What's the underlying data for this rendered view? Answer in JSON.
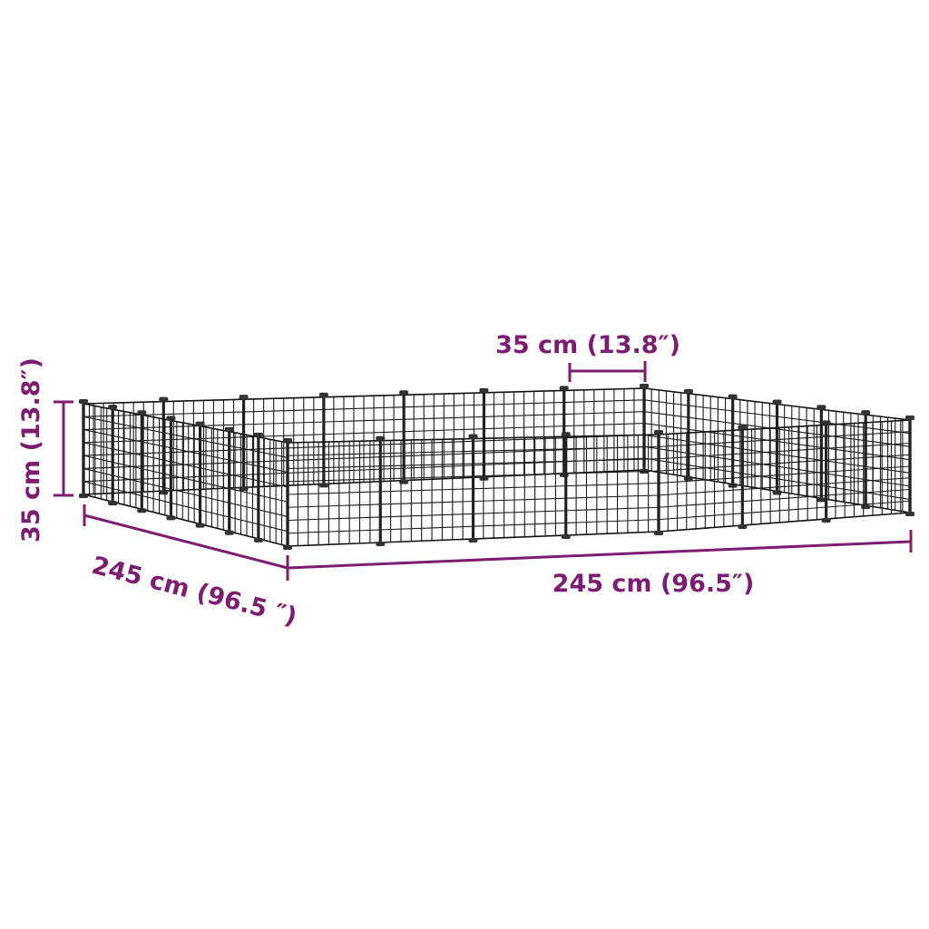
{
  "dimensions": {
    "height_label": "35 cm (13.8″)",
    "panel_width_label": "35 cm (13.8″)",
    "depth_label": "245 cm (96.5 ″)",
    "width_label": "245 cm (96.5″)"
  },
  "colors": {
    "dimension": "#7d1d72",
    "fence": "#1a1a1a",
    "background": "#ffffff"
  }
}
